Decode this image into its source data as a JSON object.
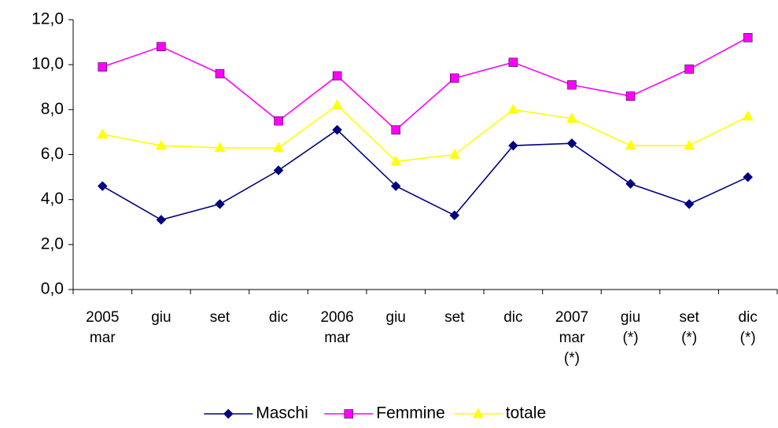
{
  "chart_data": {
    "type": "line",
    "categories": [
      "2005\nmar",
      "giu",
      "set",
      "dic",
      "2006\nmar",
      "giu",
      "set",
      "dic",
      "2007\nmar\n(*)",
      "giu\n(*)",
      "set\n(*)",
      "dic\n(*)"
    ],
    "series": [
      {
        "name": "Maschi",
        "color": "#000080",
        "marker": "diamond",
        "values": [
          4.6,
          3.1,
          3.8,
          5.3,
          7.1,
          4.6,
          3.3,
          6.4,
          6.5,
          4.7,
          3.8,
          5.0
        ]
      },
      {
        "name": "Femmine",
        "color": "#ff00ff",
        "marker": "square",
        "values": [
          9.9,
          10.8,
          9.6,
          7.5,
          9.5,
          7.1,
          9.4,
          10.1,
          9.1,
          8.6,
          9.8,
          11.2
        ]
      },
      {
        "name": "totale",
        "color": "#ffff00",
        "marker": "triangle",
        "values": [
          6.9,
          6.4,
          6.3,
          6.3,
          8.2,
          5.7,
          6.0,
          8.0,
          7.6,
          6.4,
          6.4,
          7.7
        ]
      }
    ],
    "ylim": [
      0,
      12
    ],
    "yticks": [
      {
        "value": 0,
        "label": "0,0"
      },
      {
        "value": 2,
        "label": "2,0"
      },
      {
        "value": 4,
        "label": "4,0"
      },
      {
        "value": 6,
        "label": "6,0"
      },
      {
        "value": 8,
        "label": "8,0"
      },
      {
        "value": 10,
        "label": "10,0"
      },
      {
        "value": 12,
        "label": "12,0"
      }
    ],
    "grid": false,
    "legend": "bottom"
  }
}
